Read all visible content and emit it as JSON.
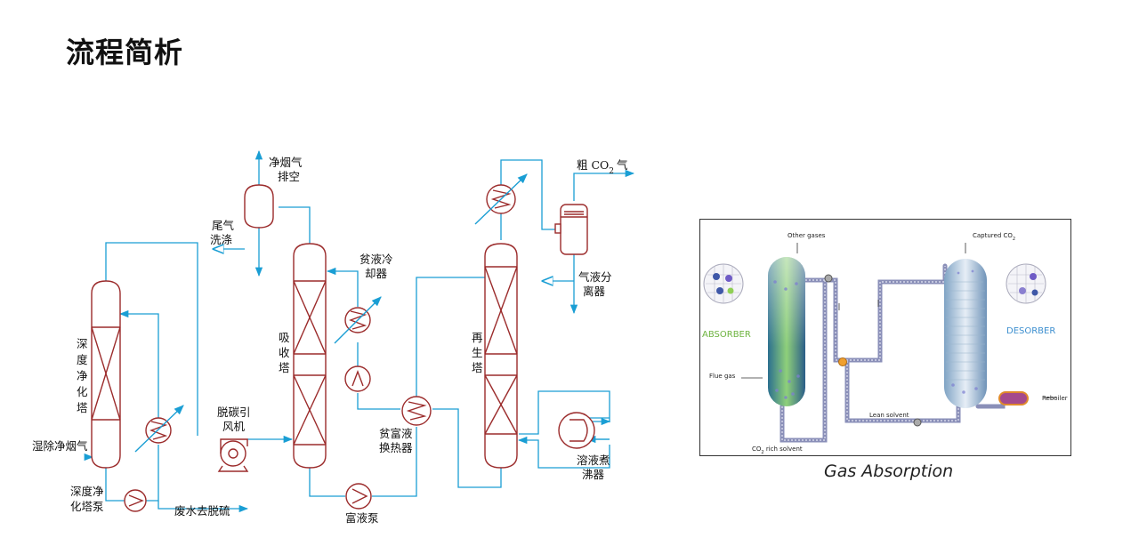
{
  "slide": {
    "title": "流程简析"
  },
  "process_diagram": {
    "labels": {
      "clean_gas_vent_1": "净烟气",
      "clean_gas_vent_2": "排空",
      "tail_gas_wash_1": "尾气",
      "tail_gas_wash_2": "洗涤",
      "crude_co2_prefix": "粗 CO",
      "crude_co2_sub": "2",
      "crude_co2_suffix": "气",
      "lean_cooler_1": "贫液冷",
      "lean_cooler_2": "却器",
      "separator_1": "气液分",
      "separator_2": "离器",
      "deep_tower_1": "深",
      "deep_tower_2": "度",
      "deep_tower_3": "净",
      "deep_tower_4": "化",
      "deep_tower_5": "塔",
      "absorber_1": "吸",
      "absorber_2": "收",
      "absorber_3": "塔",
      "regen_1": "再",
      "regen_2": "生",
      "regen_3": "塔",
      "fan_1": "脱碳引",
      "fan_2": "风机",
      "wet_flue_gas": "湿除净烟气",
      "deep_pump_1": "深度净",
      "deep_pump_2": "化塔泵",
      "wastewater": "废水去脱硫",
      "rich_pump": "富液泵",
      "hx_1": "贫富液",
      "hx_2": "换热器",
      "reboiler_1": "溶液煮",
      "reboiler_2": "沸器"
    }
  },
  "absorption_figure": {
    "caption": "Gas Absorption",
    "labels": {
      "other_gases": "Other gases",
      "captured_prefix": "Captured CO",
      "captured_sub": "2",
      "absorber": "ABSORBER",
      "desorber": "DESORBER",
      "flue_gas": "Flue gas",
      "lean_solvent": "Lean solvent",
      "rich_prefix": "CO",
      "rich_sub": "2",
      "rich_suffix": " rich solvent",
      "reboiler": "Reboiler"
    },
    "colors": {
      "absorber_text": "#6db33f",
      "desorber_text": "#3d8fcf",
      "pipe": "#8a8fb8"
    }
  },
  "colors": {
    "vessel": "#9b2b2b",
    "pipe": "#1a9ed4"
  }
}
